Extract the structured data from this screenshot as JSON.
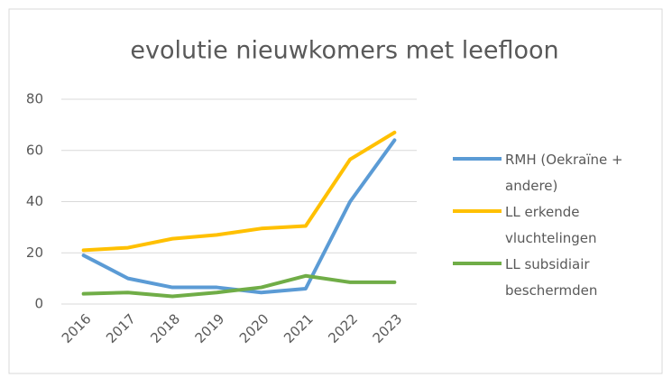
{
  "chart_data": {
    "type": "line",
    "title": "evolutie nieuwkomers met leefloon",
    "categories": [
      "2016",
      "2017",
      "2018",
      "2019",
      "2020",
      "2021",
      "2022",
      "2023"
    ],
    "series": [
      {
        "name": "RMH (Oekraïne + andere)",
        "color": "#5b9bd5",
        "values": [
          19,
          10,
          6.5,
          6.5,
          4.5,
          6,
          40,
          64
        ]
      },
      {
        "name": "LL erkende vluchtelingen",
        "color": "#ffc000",
        "values": [
          21,
          22,
          25.5,
          27,
          29.5,
          30.5,
          56.5,
          67
        ]
      },
      {
        "name": "LL subsidiair beschermden",
        "color": "#70ad47",
        "values": [
          4,
          4.5,
          3,
          4.5,
          6.5,
          11,
          8.5,
          8.5
        ]
      }
    ],
    "ylim": [
      0,
      80
    ],
    "yticks": [
      0,
      20,
      40,
      60,
      80
    ],
    "grid": true,
    "legend": "right"
  }
}
